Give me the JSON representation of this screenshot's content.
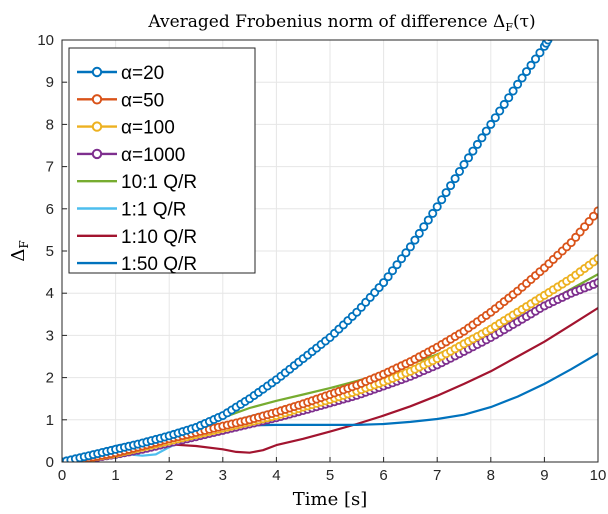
{
  "chart_data": {
    "type": "line",
    "title": "Averaged Frobenius norm of difference Δ",
    "title_subscript": "F",
    "title_suffix": "(τ)",
    "xlabel": "Time [s]",
    "ylabel": "Δ",
    "ylabel_subscript": "F",
    "xlim": [
      0,
      10
    ],
    "ylim": [
      0,
      10
    ],
    "xticks": [
      0,
      1,
      2,
      3,
      4,
      5,
      6,
      7,
      8,
      9,
      10
    ],
    "yticks": [
      0,
      1,
      2,
      3,
      4,
      5,
      6,
      7,
      8,
      9,
      10
    ],
    "grid": true,
    "legend_position": "top-left",
    "series": [
      {
        "name": "α=20",
        "color": "#0072BD",
        "marker": "circle",
        "x": [
          0,
          0.5,
          1,
          1.5,
          2,
          2.5,
          3,
          3.5,
          4,
          4.5,
          5,
          5.5,
          6,
          6.5,
          7,
          7.5,
          8,
          8.5,
          9,
          9.2
        ],
        "y": [
          0,
          0.15,
          0.3,
          0.45,
          0.62,
          0.82,
          1.1,
          1.5,
          1.95,
          2.45,
          2.95,
          3.55,
          4.25,
          5.1,
          6.05,
          7.05,
          8.0,
          8.95,
          9.85,
          10.3
        ]
      },
      {
        "name": "α=50",
        "color": "#D95319",
        "marker": "circle",
        "x": [
          0,
          0.5,
          1,
          1.5,
          2,
          2.5,
          3,
          3.5,
          4,
          4.5,
          5,
          5.5,
          6,
          6.5,
          7,
          7.5,
          8,
          8.5,
          9,
          9.5,
          10
        ],
        "y": [
          0,
          0.1,
          0.22,
          0.38,
          0.55,
          0.7,
          0.85,
          1.0,
          1.18,
          1.38,
          1.6,
          1.82,
          2.08,
          2.38,
          2.72,
          3.1,
          3.55,
          4.05,
          4.6,
          5.2,
          5.95
        ]
      },
      {
        "name": "α=100",
        "color": "#EDB120",
        "marker": "circle",
        "x": [
          0,
          0.5,
          1,
          1.5,
          2,
          2.5,
          3,
          3.5,
          4,
          4.5,
          5,
          5.5,
          6,
          6.5,
          7,
          7.5,
          8,
          8.5,
          9,
          9.5,
          10
        ],
        "y": [
          0,
          0.1,
          0.2,
          0.35,
          0.5,
          0.65,
          0.8,
          0.95,
          1.1,
          1.3,
          1.48,
          1.68,
          1.9,
          2.15,
          2.45,
          2.8,
          3.15,
          3.55,
          3.95,
          4.35,
          4.82
        ]
      },
      {
        "name": "α=1000",
        "color": "#7E2F8E",
        "marker": "circle",
        "x": [
          0,
          0.5,
          1,
          1.5,
          2,
          2.5,
          3,
          3.5,
          4,
          4.5,
          5,
          5.5,
          6,
          6.5,
          7,
          7.5,
          8,
          8.5,
          9,
          9.5,
          10
        ],
        "y": [
          0,
          0.08,
          0.18,
          0.3,
          0.45,
          0.6,
          0.75,
          0.9,
          1.05,
          1.22,
          1.4,
          1.58,
          1.8,
          2.03,
          2.3,
          2.62,
          2.95,
          3.32,
          3.7,
          4.0,
          4.25
        ]
      },
      {
        "name": "10:1 Q/R",
        "color": "#77AC30",
        "marker": "none",
        "x": [
          0,
          0.5,
          1,
          1.5,
          2,
          2.5,
          3,
          3.5,
          4,
          4.5,
          5,
          5.5,
          6,
          6.5,
          7,
          7.5,
          8,
          8.5,
          9,
          9.5,
          10
        ],
        "y": [
          0,
          0.12,
          0.25,
          0.38,
          0.55,
          0.8,
          1.05,
          1.28,
          1.45,
          1.6,
          1.75,
          1.92,
          2.1,
          2.32,
          2.55,
          2.82,
          3.1,
          3.42,
          3.75,
          4.1,
          4.45
        ]
      },
      {
        "name": "1:1 Q/R",
        "color": "#4DBEEE",
        "marker": "none",
        "x": [
          0,
          0.5,
          1,
          1.25,
          1.5,
          1.75,
          2,
          2.5,
          3,
          3.5,
          4,
          4.5,
          5,
          5.5,
          6,
          6.5,
          7,
          7.5,
          8,
          8.5,
          9,
          9.5,
          10
        ],
        "y": [
          0,
          0.1,
          0.22,
          0.18,
          0.15,
          0.18,
          0.35,
          0.65,
          0.9,
          1.08,
          1.25,
          1.42,
          1.58,
          1.76,
          1.96,
          2.2,
          2.47,
          2.78,
          3.1,
          3.42,
          3.75,
          4.05,
          4.32
        ]
      },
      {
        "name": "1:10 Q/R",
        "color": "#A2142F",
        "marker": "none",
        "x": [
          0,
          0.5,
          1,
          1.5,
          2,
          2.5,
          3,
          3.25,
          3.5,
          3.75,
          4,
          4.5,
          5,
          5.5,
          6,
          6.5,
          7,
          7.5,
          8,
          8.5,
          9,
          9.5,
          10
        ],
        "y": [
          0,
          0.15,
          0.3,
          0.38,
          0.42,
          0.38,
          0.3,
          0.24,
          0.22,
          0.28,
          0.4,
          0.55,
          0.72,
          0.9,
          1.1,
          1.32,
          1.57,
          1.85,
          2.15,
          2.5,
          2.85,
          3.25,
          3.65
        ]
      },
      {
        "name": "1:50 Q/R",
        "color": "#0072BD",
        "marker": "none",
        "x": [
          0,
          0.5,
          1,
          1.5,
          2,
          2.5,
          3,
          3.5,
          4,
          4.5,
          5,
          5.5,
          6,
          6.5,
          7,
          7.5,
          8,
          8.5,
          9,
          9.5,
          10
        ],
        "y": [
          0,
          0.2,
          0.38,
          0.5,
          0.6,
          0.72,
          0.82,
          0.87,
          0.88,
          0.88,
          0.88,
          0.88,
          0.9,
          0.95,
          1.02,
          1.12,
          1.3,
          1.55,
          1.85,
          2.2,
          2.57
        ]
      }
    ]
  }
}
